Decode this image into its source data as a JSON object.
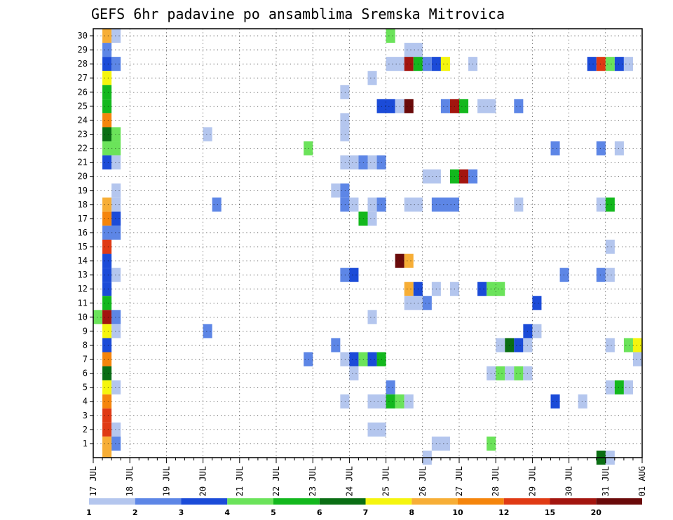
{
  "chart_data": {
    "type": "heatmap",
    "title": "GEFS 6hr padavine po ansamblima Sremska Mitrovica",
    "xlabel": "",
    "ylabel": "",
    "x_tick_labels": [
      "17 JUL",
      "18 JUL",
      "19 JUL",
      "20 JUL",
      "21 JUL",
      "22 JUL",
      "23 JUL",
      "24 JUL",
      "25 JUL",
      "26 JUL",
      "27 JUL",
      "28 JUL",
      "29 JUL",
      "30 JUL",
      "31 JUL",
      "01 AUG"
    ],
    "x_range": [
      0,
      15
    ],
    "y_range": [
      0,
      30
    ],
    "y_ticks": [
      1,
      2,
      3,
      4,
      5,
      6,
      7,
      8,
      9,
      10,
      11,
      12,
      13,
      14,
      15,
      16,
      17,
      18,
      19,
      20,
      21,
      22,
      23,
      24,
      25,
      26,
      27,
      28,
      29,
      30
    ],
    "grid": true,
    "legend_position": "bottom",
    "color_levels": [
      {
        "label": "1",
        "color": "#b4c6ee"
      },
      {
        "label": "2",
        "color": "#5d86e6"
      },
      {
        "label": "3",
        "color": "#1b4bd8"
      },
      {
        "label": "4",
        "color": "#6be35a"
      },
      {
        "label": "5",
        "color": "#13b81d"
      },
      {
        "label": "6",
        "color": "#0a6e14"
      },
      {
        "label": "7",
        "color": "#f5f50e"
      },
      {
        "label": "8",
        "color": "#f7ae36"
      },
      {
        "label": "10",
        "color": "#f5850c"
      },
      {
        "label": "12",
        "color": "#e03a14"
      },
      {
        "label": "15",
        "color": "#a3150f"
      },
      {
        "label": "20",
        "color": "#6a0a0a"
      }
    ],
    "cells_note": "member = ensemble member (y), t = days since 17 JUL (x), w = width in days, c = color level index",
    "cells": [
      {
        "m": 30,
        "t": 0.25,
        "w": 0.25,
        "c": 7
      },
      {
        "m": 30,
        "t": 0.5,
        "w": 0.25,
        "c": 0
      },
      {
        "m": 29,
        "t": 0.25,
        "w": 0.25,
        "c": 1
      },
      {
        "m": 28,
        "t": 0.25,
        "w": 0.25,
        "c": 2
      },
      {
        "m": 28,
        "t": 0.5,
        "w": 0.25,
        "c": 1
      },
      {
        "m": 27,
        "t": 0.25,
        "w": 0.25,
        "c": 6
      },
      {
        "m": 26,
        "t": 0.25,
        "w": 0.25,
        "c": 4
      },
      {
        "m": 25,
        "t": 0.25,
        "w": 0.25,
        "c": 4
      },
      {
        "m": 24,
        "t": 0.25,
        "w": 0.25,
        "c": 8
      },
      {
        "m": 23,
        "t": 0.25,
        "w": 0.25,
        "c": 5
      },
      {
        "m": 23,
        "t": 0.5,
        "w": 0.25,
        "c": 3
      },
      {
        "m": 22,
        "t": 0.25,
        "w": 0.5,
        "c": 3
      },
      {
        "m": 21,
        "t": 0.25,
        "w": 0.25,
        "c": 2
      },
      {
        "m": 21,
        "t": 0.5,
        "w": 0.25,
        "c": 0
      },
      {
        "m": 19,
        "t": 0.5,
        "w": 0.25,
        "c": 0
      },
      {
        "m": 18,
        "t": 0.25,
        "w": 0.25,
        "c": 7
      },
      {
        "m": 18,
        "t": 0.5,
        "w": 0.25,
        "c": 0
      },
      {
        "m": 17,
        "t": 0.25,
        "w": 0.25,
        "c": 8
      },
      {
        "m": 17,
        "t": 0.5,
        "w": 0.25,
        "c": 2
      },
      {
        "m": 16,
        "t": 0.25,
        "w": 0.5,
        "c": 1
      },
      {
        "m": 15,
        "t": 0.25,
        "w": 0.25,
        "c": 9
      },
      {
        "m": 14,
        "t": 0.25,
        "w": 0.25,
        "c": 2
      },
      {
        "m": 13,
        "t": 0.25,
        "w": 0.25,
        "c": 2
      },
      {
        "m": 13,
        "t": 0.5,
        "w": 0.25,
        "c": 0
      },
      {
        "m": 12,
        "t": 0.25,
        "w": 0.25,
        "c": 2
      },
      {
        "m": 11,
        "t": 0.25,
        "w": 0.25,
        "c": 4
      },
      {
        "m": 10,
        "t": 0.0,
        "w": 0.25,
        "c": 3
      },
      {
        "m": 10,
        "t": 0.25,
        "w": 0.25,
        "c": 10
      },
      {
        "m": 10,
        "t": 0.5,
        "w": 0.25,
        "c": 1
      },
      {
        "m": 9,
        "t": 0.25,
        "w": 0.25,
        "c": 6
      },
      {
        "m": 9,
        "t": 0.5,
        "w": 0.25,
        "c": 0
      },
      {
        "m": 8,
        "t": 0.25,
        "w": 0.25,
        "c": 2
      },
      {
        "m": 7,
        "t": 0.25,
        "w": 0.25,
        "c": 8
      },
      {
        "m": 6,
        "t": 0.25,
        "w": 0.25,
        "c": 5
      },
      {
        "m": 5,
        "t": 0.25,
        "w": 0.25,
        "c": 6
      },
      {
        "m": 5,
        "t": 0.5,
        "w": 0.25,
        "c": 0
      },
      {
        "m": 4,
        "t": 0.25,
        "w": 0.25,
        "c": 8
      },
      {
        "m": 3,
        "t": 0.25,
        "w": 0.25,
        "c": 9
      },
      {
        "m": 2,
        "t": 0.25,
        "w": 0.25,
        "c": 9
      },
      {
        "m": 2,
        "t": 0.5,
        "w": 0.25,
        "c": 0
      },
      {
        "m": 1,
        "t": 0.25,
        "w": 0.25,
        "c": 7
      },
      {
        "m": 1,
        "t": 0.5,
        "w": 0.25,
        "c": 1
      },
      {
        "m": 0.5,
        "t": 0.25,
        "w": 0.25,
        "c": 7
      },
      {
        "m": 30,
        "t": 8.0,
        "w": 0.25,
        "c": 3
      },
      {
        "m": 29,
        "t": 8.5,
        "w": 0.5,
        "c": 0
      },
      {
        "m": 28,
        "t": 8.0,
        "w": 0.5,
        "c": 0
      },
      {
        "m": 28,
        "t": 8.5,
        "w": 0.25,
        "c": 10
      },
      {
        "m": 28,
        "t": 8.75,
        "w": 0.25,
        "c": 4
      },
      {
        "m": 28,
        "t": 9.0,
        "w": 0.25,
        "c": 1
      },
      {
        "m": 28,
        "t": 9.25,
        "w": 0.25,
        "c": 2
      },
      {
        "m": 28,
        "t": 9.5,
        "w": 0.25,
        "c": 6
      },
      {
        "m": 28,
        "t": 10.25,
        "w": 0.25,
        "c": 0
      },
      {
        "m": 28,
        "t": 13.5,
        "w": 0.25,
        "c": 2
      },
      {
        "m": 28,
        "t": 13.75,
        "w": 0.25,
        "c": 9
      },
      {
        "m": 28,
        "t": 14.0,
        "w": 0.25,
        "c": 3
      },
      {
        "m": 28,
        "t": 14.25,
        "w": 0.25,
        "c": 2
      },
      {
        "m": 28,
        "t": 14.5,
        "w": 0.25,
        "c": 0
      },
      {
        "m": 27,
        "t": 7.5,
        "w": 0.25,
        "c": 0
      },
      {
        "m": 26,
        "t": 6.75,
        "w": 0.25,
        "c": 0
      },
      {
        "m": 25,
        "t": 7.75,
        "w": 0.5,
        "c": 2
      },
      {
        "m": 25,
        "t": 8.25,
        "w": 0.25,
        "c": 0
      },
      {
        "m": 25,
        "t": 8.5,
        "w": 0.25,
        "c": 11
      },
      {
        "m": 25,
        "t": 9.5,
        "w": 0.25,
        "c": 1
      },
      {
        "m": 25,
        "t": 9.75,
        "w": 0.25,
        "c": 10
      },
      {
        "m": 25,
        "t": 10.0,
        "w": 0.25,
        "c": 4
      },
      {
        "m": 25,
        "t": 10.5,
        "w": 0.5,
        "c": 0
      },
      {
        "m": 25,
        "t": 11.5,
        "w": 0.25,
        "c": 1
      },
      {
        "m": 24,
        "t": 6.75,
        "w": 0.25,
        "c": 0
      },
      {
        "m": 23,
        "t": 3.0,
        "w": 0.25,
        "c": 0
      },
      {
        "m": 23,
        "t": 6.75,
        "w": 0.25,
        "c": 0
      },
      {
        "m": 22,
        "t": 5.75,
        "w": 0.25,
        "c": 3
      },
      {
        "m": 22,
        "t": 12.5,
        "w": 0.25,
        "c": 1
      },
      {
        "m": 22,
        "t": 13.75,
        "w": 0.25,
        "c": 1
      },
      {
        "m": 22,
        "t": 14.25,
        "w": 0.25,
        "c": 0
      },
      {
        "m": 21,
        "t": 6.75,
        "w": 0.5,
        "c": 0
      },
      {
        "m": 21,
        "t": 7.25,
        "w": 0.25,
        "c": 1
      },
      {
        "m": 21,
        "t": 7.5,
        "w": 0.25,
        "c": 0
      },
      {
        "m": 21,
        "t": 7.75,
        "w": 0.25,
        "c": 1
      },
      {
        "m": 20,
        "t": 9.0,
        "w": 0.5,
        "c": 0
      },
      {
        "m": 20,
        "t": 9.75,
        "w": 0.25,
        "c": 4
      },
      {
        "m": 20,
        "t": 10.0,
        "w": 0.25,
        "c": 10
      },
      {
        "m": 20,
        "t": 10.25,
        "w": 0.25,
        "c": 1
      },
      {
        "m": 19,
        "t": 6.5,
        "w": 0.25,
        "c": 0
      },
      {
        "m": 19,
        "t": 6.75,
        "w": 0.25,
        "c": 1
      },
      {
        "m": 18,
        "t": 3.25,
        "w": 0.25,
        "c": 1
      },
      {
        "m": 18,
        "t": 6.75,
        "w": 0.25,
        "c": 1
      },
      {
        "m": 18,
        "t": 7.0,
        "w": 0.25,
        "c": 0
      },
      {
        "m": 18,
        "t": 7.5,
        "w": 0.25,
        "c": 0
      },
      {
        "m": 18,
        "t": 7.75,
        "w": 0.25,
        "c": 1
      },
      {
        "m": 18,
        "t": 8.5,
        "w": 0.5,
        "c": 0
      },
      {
        "m": 18,
        "t": 9.25,
        "w": 0.75,
        "c": 1
      },
      {
        "m": 18,
        "t": 11.5,
        "w": 0.25,
        "c": 0
      },
      {
        "m": 18,
        "t": 13.75,
        "w": 0.25,
        "c": 0
      },
      {
        "m": 18,
        "t": 14.0,
        "w": 0.25,
        "c": 4
      },
      {
        "m": 17,
        "t": 7.25,
        "w": 0.25,
        "c": 4
      },
      {
        "m": 17,
        "t": 7.5,
        "w": 0.25,
        "c": 0
      },
      {
        "m": 15,
        "t": 14.0,
        "w": 0.25,
        "c": 0
      },
      {
        "m": 14,
        "t": 8.25,
        "w": 0.25,
        "c": 11
      },
      {
        "m": 14,
        "t": 8.5,
        "w": 0.25,
        "c": 7
      },
      {
        "m": 13,
        "t": 6.75,
        "w": 0.25,
        "c": 1
      },
      {
        "m": 13,
        "t": 7.0,
        "w": 0.25,
        "c": 2
      },
      {
        "m": 13,
        "t": 12.75,
        "w": 0.25,
        "c": 1
      },
      {
        "m": 13,
        "t": 13.75,
        "w": 0.25,
        "c": 1
      },
      {
        "m": 13,
        "t": 14.0,
        "w": 0.25,
        "c": 0
      },
      {
        "m": 12,
        "t": 8.5,
        "w": 0.25,
        "c": 7
      },
      {
        "m": 12,
        "t": 8.75,
        "w": 0.25,
        "c": 2
      },
      {
        "m": 12,
        "t": 9.25,
        "w": 0.25,
        "c": 0
      },
      {
        "m": 12,
        "t": 9.75,
        "w": 0.25,
        "c": 0
      },
      {
        "m": 12,
        "t": 10.5,
        "w": 0.25,
        "c": 2
      },
      {
        "m": 12,
        "t": 10.75,
        "w": 0.5,
        "c": 3
      },
      {
        "m": 11,
        "t": 8.5,
        "w": 0.5,
        "c": 0
      },
      {
        "m": 11,
        "t": 9.0,
        "w": 0.25,
        "c": 1
      },
      {
        "m": 11,
        "t": 12.0,
        "w": 0.25,
        "c": 2
      },
      {
        "m": 10,
        "t": 7.5,
        "w": 0.25,
        "c": 0
      },
      {
        "m": 9,
        "t": 3.0,
        "w": 0.25,
        "c": 1
      },
      {
        "m": 9,
        "t": 11.75,
        "w": 0.25,
        "c": 2
      },
      {
        "m": 9,
        "t": 12.0,
        "w": 0.25,
        "c": 0
      },
      {
        "m": 8,
        "t": 6.5,
        "w": 0.25,
        "c": 1
      },
      {
        "m": 8,
        "t": 11.0,
        "w": 0.25,
        "c": 0
      },
      {
        "m": 8,
        "t": 11.25,
        "w": 0.25,
        "c": 5
      },
      {
        "m": 8,
        "t": 11.5,
        "w": 0.25,
        "c": 2
      },
      {
        "m": 8,
        "t": 11.75,
        "w": 0.25,
        "c": 0
      },
      {
        "m": 8,
        "t": 14.0,
        "w": 0.25,
        "c": 0
      },
      {
        "m": 8,
        "t": 14.5,
        "w": 0.25,
        "c": 3
      },
      {
        "m": 8,
        "t": 14.75,
        "w": 0.25,
        "c": 6
      },
      {
        "m": 7,
        "t": 5.75,
        "w": 0.25,
        "c": 1
      },
      {
        "m": 7,
        "t": 6.75,
        "w": 0.25,
        "c": 0
      },
      {
        "m": 7,
        "t": 7.0,
        "w": 0.25,
        "c": 2
      },
      {
        "m": 7,
        "t": 7.25,
        "w": 0.25,
        "c": 3
      },
      {
        "m": 7,
        "t": 7.5,
        "w": 0.25,
        "c": 2
      },
      {
        "m": 7,
        "t": 7.75,
        "w": 0.25,
        "c": 4
      },
      {
        "m": 7,
        "t": 14.75,
        "w": 0.25,
        "c": 0
      },
      {
        "m": 6,
        "t": 7.0,
        "w": 0.25,
        "c": 0
      },
      {
        "m": 6,
        "t": 10.75,
        "w": 0.25,
        "c": 0
      },
      {
        "m": 6,
        "t": 11.0,
        "w": 0.25,
        "c": 3
      },
      {
        "m": 6,
        "t": 11.25,
        "w": 0.25,
        "c": 0
      },
      {
        "m": 6,
        "t": 11.5,
        "w": 0.25,
        "c": 3
      },
      {
        "m": 6,
        "t": 11.75,
        "w": 0.25,
        "c": 0
      },
      {
        "m": 5,
        "t": 8.0,
        "w": 0.25,
        "c": 1
      },
      {
        "m": 5,
        "t": 14.0,
        "w": 0.25,
        "c": 0
      },
      {
        "m": 5,
        "t": 14.25,
        "w": 0.25,
        "c": 4
      },
      {
        "m": 5,
        "t": 14.5,
        "w": 0.25,
        "c": 0
      },
      {
        "m": 4,
        "t": 6.75,
        "w": 0.25,
        "c": 0
      },
      {
        "m": 4,
        "t": 7.5,
        "w": 0.5,
        "c": 0
      },
      {
        "m": 4,
        "t": 8.0,
        "w": 0.25,
        "c": 4
      },
      {
        "m": 4,
        "t": 8.25,
        "w": 0.25,
        "c": 3
      },
      {
        "m": 4,
        "t": 8.5,
        "w": 0.25,
        "c": 0
      },
      {
        "m": 4,
        "t": 12.5,
        "w": 0.25,
        "c": 2
      },
      {
        "m": 4,
        "t": 13.25,
        "w": 0.25,
        "c": 0
      },
      {
        "m": 2,
        "t": 7.5,
        "w": 0.5,
        "c": 0
      },
      {
        "m": 1,
        "t": 9.25,
        "w": 0.5,
        "c": 0
      },
      {
        "m": 1,
        "t": 10.75,
        "w": 0.25,
        "c": 3
      },
      {
        "m": 0,
        "t": 9.0,
        "w": 0.25,
        "c": 0
      },
      {
        "m": 0,
        "t": 13.75,
        "w": 0.25,
        "c": 5
      },
      {
        "m": 0,
        "t": 14.0,
        "w": 0.25,
        "c": 0
      }
    ]
  }
}
